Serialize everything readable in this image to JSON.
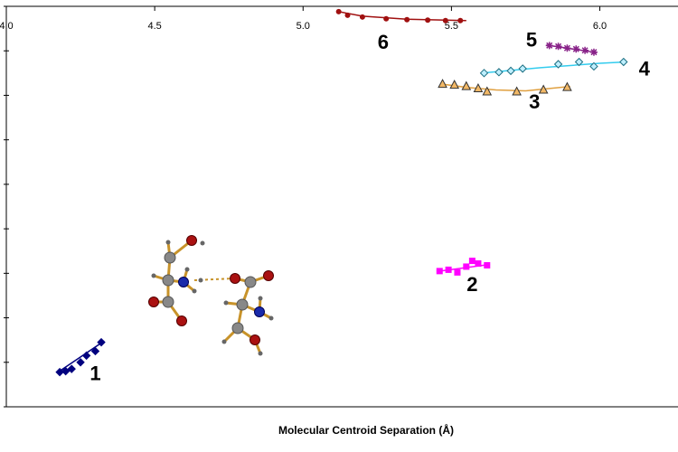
{
  "chart_data": {
    "type": "scatter",
    "title": "",
    "xlabel": "Molecular Centroid Separation (Å)",
    "ylabel": "",
    "xlim": [
      4.0,
      6.3
    ],
    "ylim": [
      0,
      9
    ],
    "x_ticks": [
      "4.0",
      "4.5",
      "5.0",
      "5.5",
      "6.0"
    ],
    "x_tick_values": [
      4.0,
      4.5,
      5.0,
      5.5,
      6.0
    ],
    "y_tick_count": 10,
    "grid": false,
    "series": [
      {
        "label": "1",
        "color": "#00007f",
        "marker": "diamond",
        "points": [
          [
            4.18,
            0.78
          ],
          [
            4.2,
            0.8
          ],
          [
            4.22,
            0.85
          ],
          [
            4.25,
            1.0
          ],
          [
            4.27,
            1.15
          ],
          [
            4.3,
            1.25
          ],
          [
            4.32,
            1.45
          ]
        ],
        "trend": [
          [
            4.17,
            0.76
          ],
          [
            4.33,
            1.48
          ]
        ],
        "label_pos": [
          4.3,
          0.6
        ]
      },
      {
        "label": "2",
        "color": "#ff00ff",
        "marker": "square",
        "points": [
          [
            5.46,
            3.05
          ],
          [
            5.49,
            3.08
          ],
          [
            5.52,
            3.02
          ],
          [
            5.55,
            3.15
          ],
          [
            5.57,
            3.28
          ],
          [
            5.59,
            3.22
          ],
          [
            5.62,
            3.18
          ]
        ],
        "trend": [
          [
            5.45,
            3.04
          ],
          [
            5.63,
            3.2
          ]
        ],
        "label_pos": [
          5.57,
          2.6
        ]
      },
      {
        "label": "3",
        "color": "#e0a040",
        "marker": "triangle",
        "points": [
          [
            5.47,
            7.25
          ],
          [
            5.51,
            7.23
          ],
          [
            5.55,
            7.2
          ],
          [
            5.59,
            7.15
          ],
          [
            5.62,
            7.08
          ],
          [
            5.72,
            7.08
          ],
          [
            5.81,
            7.12
          ],
          [
            5.89,
            7.18
          ]
        ],
        "trend": [
          [
            5.47,
            7.25
          ],
          [
            5.55,
            7.18
          ],
          [
            5.65,
            7.12
          ],
          [
            5.75,
            7.1
          ],
          [
            5.9,
            7.2
          ]
        ],
        "label_pos": [
          5.78,
          6.7
        ]
      },
      {
        "label": "4",
        "color": "#33ccee",
        "marker": "diamond",
        "points": [
          [
            5.61,
            7.5
          ],
          [
            5.66,
            7.52
          ],
          [
            5.7,
            7.55
          ],
          [
            5.74,
            7.6
          ],
          [
            5.86,
            7.7
          ],
          [
            5.93,
            7.75
          ],
          [
            5.98,
            7.65
          ],
          [
            6.08,
            7.75
          ]
        ],
        "trend": [
          [
            5.6,
            7.5
          ],
          [
            5.8,
            7.62
          ],
          [
            6.0,
            7.72
          ],
          [
            6.09,
            7.75
          ]
        ],
        "label_pos": [
          6.15,
          7.45
        ]
      },
      {
        "label": "5",
        "color": "#882288",
        "marker": "star",
        "points": [
          [
            5.83,
            8.12
          ],
          [
            5.86,
            8.1
          ],
          [
            5.89,
            8.06
          ],
          [
            5.92,
            8.04
          ],
          [
            5.95,
            8.01
          ],
          [
            5.98,
            7.97
          ]
        ],
        "trend": [
          [
            5.82,
            8.13
          ],
          [
            5.99,
            7.96
          ]
        ],
        "label_pos": [
          5.77,
          8.1
        ]
      },
      {
        "label": "6",
        "color": "#a01010",
        "marker": "circle",
        "points": [
          [
            5.12,
            8.88
          ],
          [
            5.15,
            8.8
          ],
          [
            5.2,
            8.76
          ],
          [
            5.28,
            8.72
          ],
          [
            5.35,
            8.7
          ],
          [
            5.42,
            8.69
          ],
          [
            5.48,
            8.68
          ],
          [
            5.53,
            8.68
          ]
        ],
        "trend": [
          [
            5.12,
            8.88
          ],
          [
            5.2,
            8.78
          ],
          [
            5.35,
            8.71
          ],
          [
            5.55,
            8.68
          ]
        ],
        "label_pos": [
          5.27,
          8.05
        ]
      }
    ]
  }
}
